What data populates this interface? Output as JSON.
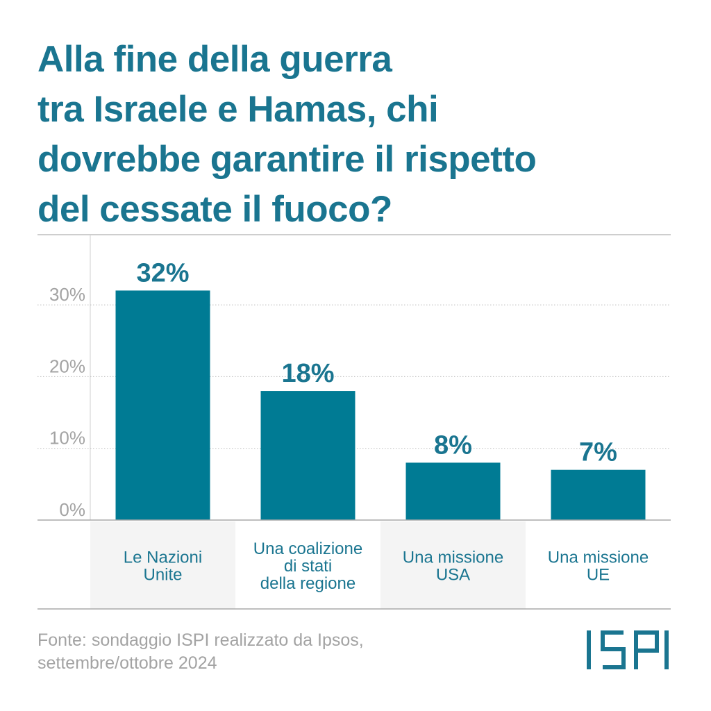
{
  "title_lines": [
    "Alla fine della guerra",
    "tra Israele e Hamas, chi",
    "dovrebbe garantire il rispetto",
    "del cessate il fuoco?"
  ],
  "chart_data": {
    "type": "bar",
    "categories": [
      [
        "Le Nazioni",
        "Unite"
      ],
      [
        "Una coalizione",
        "di stati",
        "della regione"
      ],
      [
        "Una missione",
        "USA"
      ],
      [
        "Una missione",
        "UE"
      ]
    ],
    "values": [
      32,
      18,
      8,
      7
    ],
    "data_labels": [
      "32%",
      "18%",
      "8%",
      "7%"
    ],
    "yticks": [
      0,
      10,
      20,
      30
    ],
    "ytick_labels": [
      "0%",
      "10%",
      "20%",
      "30%"
    ],
    "ylim": [
      0,
      40
    ],
    "grid": true,
    "colors": {
      "bar": "#007b94",
      "label": "#1a7590",
      "axis_text": "#a3a3a3",
      "grid": "#bdbdbd",
      "category_bg": "#f4f4f4"
    }
  },
  "source_lines": [
    "Fonte: sondaggio ISPI realizzato da Ipsos,",
    "settembre/ottobre 2024"
  ],
  "logo_text": "ISPI",
  "colors": {
    "title": "#1a7590",
    "logo": "#1a7590",
    "source": "#a3a3a3"
  }
}
